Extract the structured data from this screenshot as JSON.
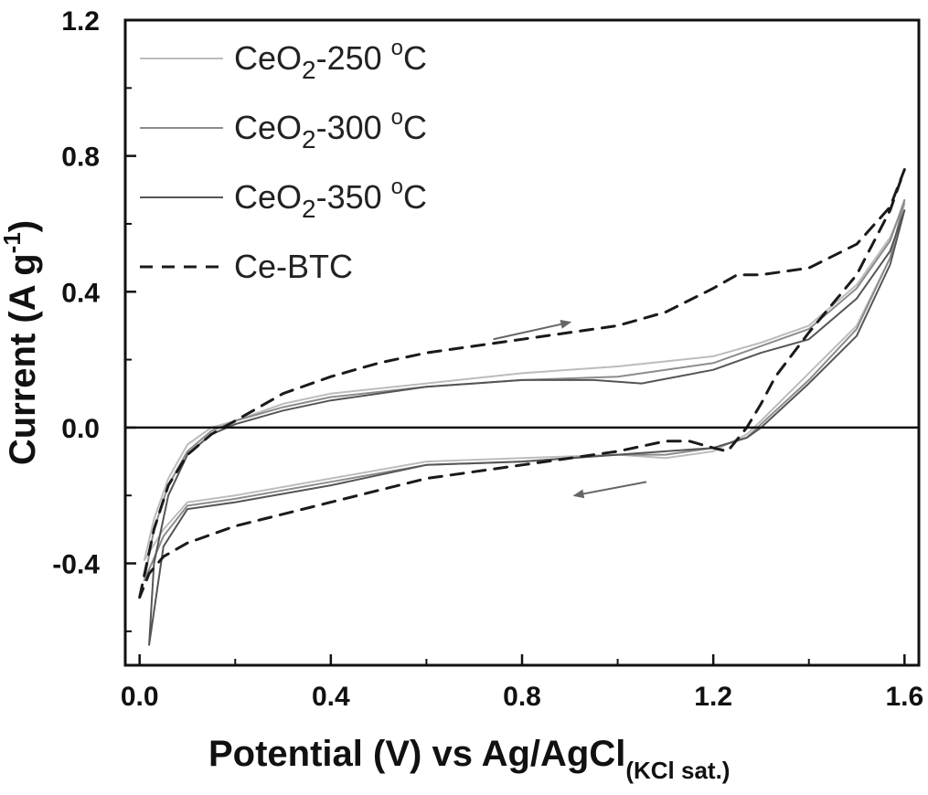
{
  "chart_data": {
    "type": "line",
    "title": "",
    "xlabel": "Potential (V)  vs Ag/AgCl",
    "xlabel_subscript": "(KCl sat.)",
    "ylabel": "Current (A g",
    "ylabel_superscript": "-1",
    "ylabel_close": ")",
    "xlim": [
      -0.03,
      1.63
    ],
    "ylim": [
      -0.7,
      1.2
    ],
    "x_ticks": [
      0.0,
      0.4,
      0.8,
      1.2,
      1.6
    ],
    "x_tick_labels": [
      "0.0",
      "0.4",
      "0.8",
      "1.2",
      "1.6"
    ],
    "y_ticks": [
      -0.4,
      0.0,
      0.4,
      0.8,
      1.2
    ],
    "y_tick_labels": [
      "-0.4",
      "0.0",
      "0.4",
      "0.8",
      "1.2"
    ],
    "zero_line": true,
    "grid": false,
    "legend_position": "top-left",
    "series": [
      {
        "label_base": "CeO",
        "label_sub": "2",
        "label_rest": "-250 ",
        "label_sup": "o",
        "label_end": "C",
        "color": "#bcbcbc",
        "dash": "solid",
        "points": [
          [
            0.01,
            -0.39
          ],
          [
            0.03,
            -0.27
          ],
          [
            0.06,
            -0.15
          ],
          [
            0.1,
            -0.05
          ],
          [
            0.15,
            0.0
          ],
          [
            0.2,
            0.02
          ],
          [
            0.3,
            0.07
          ],
          [
            0.4,
            0.1
          ],
          [
            0.6,
            0.13
          ],
          [
            0.8,
            0.16
          ],
          [
            1.0,
            0.18
          ],
          [
            1.2,
            0.21
          ],
          [
            1.3,
            0.25
          ],
          [
            1.4,
            0.3
          ],
          [
            1.5,
            0.42
          ],
          [
            1.57,
            0.56
          ],
          [
            1.6,
            0.66
          ],
          [
            1.57,
            0.5
          ],
          [
            1.5,
            0.3
          ],
          [
            1.4,
            0.16
          ],
          [
            1.3,
            0.02
          ],
          [
            1.27,
            -0.02
          ],
          [
            1.2,
            -0.07
          ],
          [
            1.1,
            -0.09
          ],
          [
            1.0,
            -0.08
          ],
          [
            0.8,
            -0.09
          ],
          [
            0.6,
            -0.1
          ],
          [
            0.4,
            -0.15
          ],
          [
            0.2,
            -0.2
          ],
          [
            0.1,
            -0.22
          ],
          [
            0.05,
            -0.3
          ],
          [
            0.01,
            -0.39
          ]
        ]
      },
      {
        "label_base": "CeO",
        "label_sub": "2",
        "label_rest": "-300 ",
        "label_sup": "o",
        "label_end": "C",
        "color": "#8c8c8c",
        "dash": "solid",
        "points": [
          [
            0.01,
            -0.45
          ],
          [
            0.03,
            -0.3
          ],
          [
            0.06,
            -0.17
          ],
          [
            0.1,
            -0.07
          ],
          [
            0.15,
            -0.01
          ],
          [
            0.2,
            0.02
          ],
          [
            0.3,
            0.06
          ],
          [
            0.4,
            0.09
          ],
          [
            0.6,
            0.12
          ],
          [
            0.8,
            0.14
          ],
          [
            1.0,
            0.15
          ],
          [
            1.2,
            0.19
          ],
          [
            1.3,
            0.24
          ],
          [
            1.4,
            0.29
          ],
          [
            1.5,
            0.41
          ],
          [
            1.57,
            0.55
          ],
          [
            1.6,
            0.67
          ],
          [
            1.57,
            0.5
          ],
          [
            1.5,
            0.29
          ],
          [
            1.4,
            0.14
          ],
          [
            1.3,
            0.01
          ],
          [
            1.27,
            -0.03
          ],
          [
            1.2,
            -0.06
          ],
          [
            1.1,
            -0.08
          ],
          [
            1.0,
            -0.08
          ],
          [
            0.8,
            -0.1
          ],
          [
            0.6,
            -0.11
          ],
          [
            0.4,
            -0.16
          ],
          [
            0.2,
            -0.21
          ],
          [
            0.1,
            -0.23
          ],
          [
            0.05,
            -0.32
          ],
          [
            0.01,
            -0.45
          ]
        ]
      },
      {
        "label_base": "CeO",
        "label_sub": "2",
        "label_rest": "-350 ",
        "label_sup": "o",
        "label_end": "C",
        "color": "#555555",
        "dash": "solid",
        "points": [
          [
            0.02,
            -0.64
          ],
          [
            0.03,
            -0.4
          ],
          [
            0.06,
            -0.2
          ],
          [
            0.1,
            -0.08
          ],
          [
            0.15,
            -0.02
          ],
          [
            0.2,
            0.01
          ],
          [
            0.3,
            0.05
          ],
          [
            0.4,
            0.08
          ],
          [
            0.6,
            0.12
          ],
          [
            0.8,
            0.14
          ],
          [
            0.95,
            0.14
          ],
          [
            1.05,
            0.13
          ],
          [
            1.2,
            0.17
          ],
          [
            1.3,
            0.22
          ],
          [
            1.4,
            0.26
          ],
          [
            1.5,
            0.38
          ],
          [
            1.57,
            0.52
          ],
          [
            1.6,
            0.64
          ],
          [
            1.57,
            0.48
          ],
          [
            1.5,
            0.27
          ],
          [
            1.4,
            0.13
          ],
          [
            1.3,
            0.0
          ],
          [
            1.27,
            -0.03
          ],
          [
            1.2,
            -0.06
          ],
          [
            1.1,
            -0.07
          ],
          [
            1.0,
            -0.08
          ],
          [
            0.8,
            -0.1
          ],
          [
            0.6,
            -0.11
          ],
          [
            0.4,
            -0.17
          ],
          [
            0.2,
            -0.22
          ],
          [
            0.1,
            -0.24
          ],
          [
            0.05,
            -0.35
          ],
          [
            0.02,
            -0.64
          ]
        ]
      },
      {
        "label_base": "Ce-BTC",
        "label_sub": "",
        "label_rest": "",
        "label_sup": "",
        "label_end": "",
        "color": "#1a1a1a",
        "dash": "dashed",
        "points": [
          [
            0.0,
            -0.5
          ],
          [
            0.03,
            -0.3
          ],
          [
            0.06,
            -0.17
          ],
          [
            0.1,
            -0.08
          ],
          [
            0.15,
            -0.02
          ],
          [
            0.2,
            0.02
          ],
          [
            0.3,
            0.1
          ],
          [
            0.4,
            0.15
          ],
          [
            0.5,
            0.19
          ],
          [
            0.6,
            0.22
          ],
          [
            0.8,
            0.26
          ],
          [
            1.0,
            0.3
          ],
          [
            1.1,
            0.34
          ],
          [
            1.2,
            0.41
          ],
          [
            1.25,
            0.45
          ],
          [
            1.3,
            0.45
          ],
          [
            1.4,
            0.47
          ],
          [
            1.5,
            0.54
          ],
          [
            1.57,
            0.65
          ],
          [
            1.6,
            0.76
          ],
          [
            1.57,
            0.64
          ],
          [
            1.5,
            0.45
          ],
          [
            1.4,
            0.28
          ],
          [
            1.33,
            0.15
          ],
          [
            1.3,
            0.07
          ],
          [
            1.27,
            0.0
          ],
          [
            1.23,
            -0.07
          ],
          [
            1.2,
            -0.06
          ],
          [
            1.15,
            -0.04
          ],
          [
            1.1,
            -0.04
          ],
          [
            1.0,
            -0.07
          ],
          [
            0.8,
            -0.11
          ],
          [
            0.6,
            -0.15
          ],
          [
            0.4,
            -0.22
          ],
          [
            0.2,
            -0.29
          ],
          [
            0.1,
            -0.34
          ],
          [
            0.05,
            -0.38
          ],
          [
            0.02,
            -0.43
          ],
          [
            0.0,
            -0.5
          ]
        ]
      }
    ],
    "arrows": [
      {
        "from": [
          0.74,
          0.26
        ],
        "to": [
          0.9,
          0.31
        ]
      },
      {
        "from": [
          1.06,
          -0.16
        ],
        "to": [
          0.91,
          -0.2
        ]
      }
    ]
  }
}
